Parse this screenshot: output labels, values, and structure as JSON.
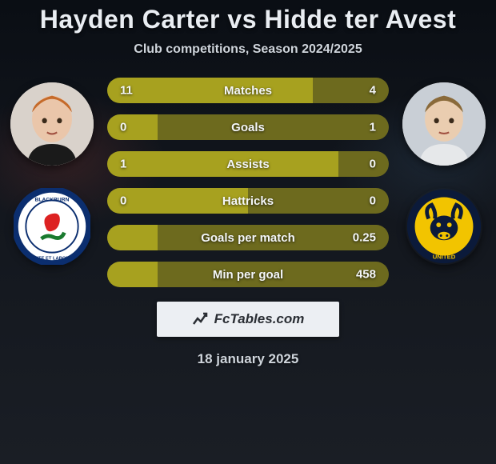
{
  "title": "Hayden Carter vs Hidde ter Avest",
  "title_fontsize": 32,
  "subtitle": "Club competitions, Season 2024/2025",
  "subtitle_fontsize": 16,
  "date": "18 january 2025",
  "date_fontsize": 17,
  "footer_brand": "FcTables.com",
  "footer_fontsize": 17,
  "background_gradient": [
    "#0a0e14",
    "#12161d",
    "#1a1e25"
  ],
  "left": {
    "player_name": "Hayden Carter",
    "club_name": "Blackburn Rovers",
    "crest_colors": {
      "outer": "#0b2e6f",
      "inner": "#ffffff",
      "accent": "#d22",
      "leaf": "#1a7a2e"
    }
  },
  "right": {
    "player_name": "Hidde ter Avest",
    "club_name": "Oxford United",
    "crest_colors": {
      "outer": "#0b1a3a",
      "inner": "#f2c400",
      "accent": "#0b1a3a"
    }
  },
  "bars": {
    "colors": {
      "left": "#a7a11f",
      "right": "#6d6a1e",
      "neutral": "#6d6a1e"
    },
    "label_fontsize": 15,
    "value_fontsize": 15,
    "height": 32,
    "radius": 16,
    "rows": [
      {
        "label": "Matches",
        "left": "11",
        "right": "4",
        "left_pct": 73,
        "right_pct": 27
      },
      {
        "label": "Goals",
        "left": "0",
        "right": "1",
        "left_pct": 18,
        "right_pct": 82
      },
      {
        "label": "Assists",
        "left": "1",
        "right": "0",
        "left_pct": 82,
        "right_pct": 18
      },
      {
        "label": "Hattricks",
        "left": "0",
        "right": "0",
        "left_pct": 50,
        "right_pct": 50
      },
      {
        "label": "Goals per match",
        "left": "",
        "right": "0.25",
        "left_pct": 18,
        "right_pct": 82
      },
      {
        "label": "Min per goal",
        "left": "",
        "right": "458",
        "left_pct": 18,
        "right_pct": 82
      }
    ]
  }
}
